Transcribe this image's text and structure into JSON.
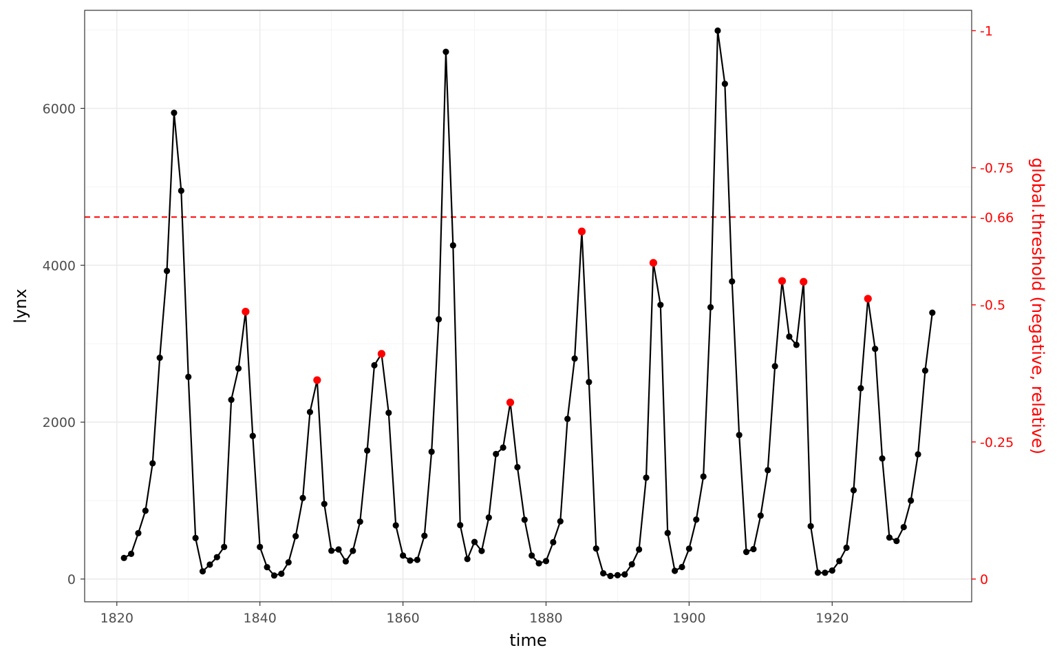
{
  "chart_data": {
    "type": "line",
    "xlabel": "time",
    "ylabel": "lynx",
    "y2label": "global.threshold (negative, relative)",
    "xlim": [
      1815.5,
      1939.5
    ],
    "ylim": [
      -290,
      7250
    ],
    "y2lim": [
      -1.0,
      0.0
    ],
    "xticks": [
      1820,
      1840,
      1860,
      1880,
      1900,
      1920
    ],
    "yticks": [
      0,
      2000,
      4000,
      6000
    ],
    "y2ticks": [
      {
        "label": "-1",
        "frac": 1.0
      },
      {
        "label": "-0.75",
        "frac": 0.75
      },
      {
        "label": "-0.66",
        "frac": 0.66
      },
      {
        "label": "-0.5",
        "frac": 0.5
      },
      {
        "label": "-0.25",
        "frac": 0.25
      },
      {
        "label": "0",
        "frac": 0.0
      }
    ],
    "threshold": {
      "label": "-0.66",
      "frac": 0.66,
      "color": "#ff0000",
      "style": "dashed"
    },
    "grid": true,
    "series_color": "#000000",
    "highlight_color": "#ff0000",
    "series": [
      {
        "x_start": 1821,
        "values": [
          269,
          321,
          585,
          871,
          1475,
          2821,
          3928,
          5943,
          4950,
          2577,
          523,
          98,
          184,
          279,
          409,
          2285,
          2685,
          3409,
          1824,
          409,
          151,
          45,
          68,
          213,
          546,
          1033,
          2129,
          2536,
          957,
          361,
          377,
          225,
          360,
          731,
          1638,
          2725,
          2871,
          2119,
          684,
          299,
          236,
          245,
          552,
          1623,
          3311,
          6721,
          4254,
          687,
          255,
          473,
          358,
          784,
          1594,
          1676,
          2251,
          1426,
          756,
          299,
          201,
          229,
          469,
          736,
          2042,
          2811,
          4431,
          2511,
          389,
          73,
          39,
          49,
          59,
          188,
          377,
          1292,
          4031,
          3495,
          587,
          105,
          153,
          387,
          758,
          1307,
          3465,
          6991,
          6313,
          3794,
          1836,
          345,
          382,
          808,
          1388,
          2713,
          3800,
          3091,
          2985,
          3790,
          674,
          81,
          80,
          108,
          229,
          399,
          1132,
          2432,
          3574,
          2935,
          1537,
          529,
          485,
          662,
          1000,
          1590,
          2657,
          3396
        ]
      }
    ],
    "highlight_years": [
      1838,
      1848,
      1857,
      1875,
      1885,
      1895,
      1913,
      1916,
      1925
    ]
  }
}
